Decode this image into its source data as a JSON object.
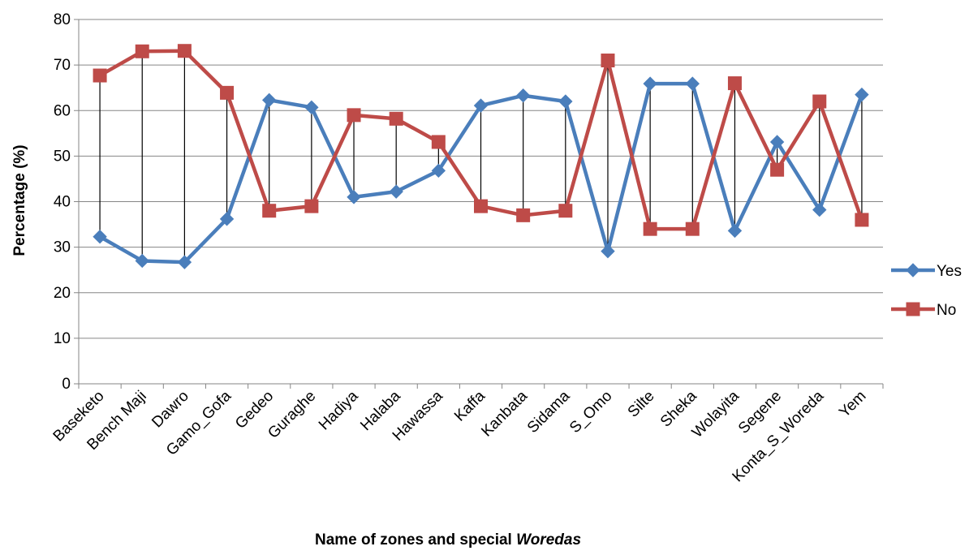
{
  "chart_data": {
    "type": "line",
    "categories": [
      "Baseketo",
      "Bench Maji",
      "Dawro",
      "Gamo_Gofa",
      "Gedeo",
      "Guraghe",
      "Hadiya",
      "Halaba",
      "Hawassa",
      "Kaffa",
      "Kanbata",
      "Sidama",
      "S_Omo",
      "Silte",
      "Sheka",
      "Wolayita",
      "Segene",
      "Konta_S_Woreda",
      "Yem"
    ],
    "series": [
      {
        "name": "Yes",
        "color": "#4A7EBB",
        "marker": "diamond",
        "values": [
          32.3,
          27.0,
          26.7,
          36.2,
          62.3,
          60.7,
          41.0,
          42.2,
          46.8,
          61.1,
          63.3,
          62.0,
          29.1,
          65.9,
          65.9,
          33.6,
          53.1,
          38.2,
          63.5
        ]
      },
      {
        "name": "No",
        "color": "#BE4B48",
        "marker": "square",
        "values": [
          67.7,
          73.0,
          73.1,
          63.9,
          38.0,
          39.0,
          59.0,
          58.2,
          53.1,
          39.0,
          37.0,
          38.0,
          71.0,
          34.0,
          34.0,
          66.0,
          47.0,
          62.0,
          36.0
        ]
      }
    ],
    "xlabel_prefix": "Name of zones and special ",
    "xlabel_italic": "Woredas",
    "ylabel": "Percentage (%)",
    "ylim": [
      0,
      80
    ],
    "yticks": [
      "0",
      "10",
      "20",
      "30",
      "40",
      "50",
      "60",
      "70",
      "80"
    ],
    "grid": true,
    "legend_position": "right",
    "high_low_lines": true
  }
}
